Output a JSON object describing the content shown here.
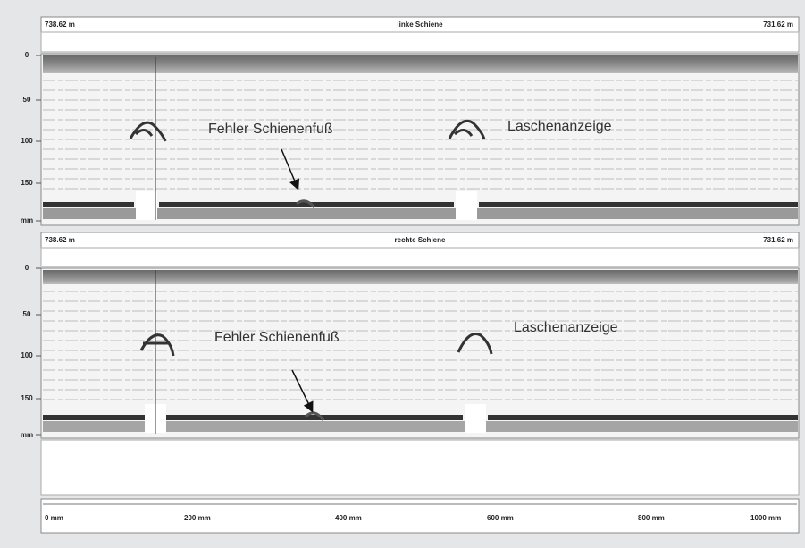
{
  "panels": [
    {
      "left": "738.62 m",
      "title": "linke Schiene",
      "right": "731.62 m",
      "y_labels": [
        "0",
        "50",
        "100",
        "150",
        "mm"
      ],
      "annotations": [
        "Fehler Schienenfuß",
        "Laschenanzeige"
      ]
    },
    {
      "left": "738.62 m",
      "title": "rechte Schiene",
      "right": "731.62 m",
      "y_labels": [
        "0",
        "50",
        "100",
        "150",
        "mm"
      ],
      "annotations": [
        "Fehler Schienenfuß",
        "Laschenanzeige"
      ]
    }
  ],
  "x_axis": {
    "labels": [
      "0 mm",
      "200 mm",
      "400 mm",
      "600 mm",
      "800 mm",
      "1000 mm"
    ]
  }
}
